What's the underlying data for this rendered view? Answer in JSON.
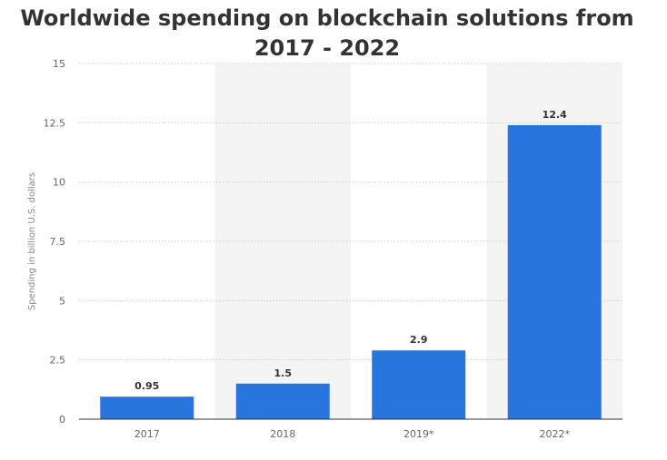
{
  "chart_data": {
    "type": "bar",
    "title": "Worldwide spending on blockchain solutions from 2017 - 2022",
    "xlabel": "",
    "ylabel": "Spending in billion U.S. dollars",
    "categories": [
      "2017",
      "2018",
      "2019*",
      "2022*"
    ],
    "values": [
      0.95,
      1.5,
      2.9,
      12.4
    ],
    "data_labels": [
      "0.95",
      "1.5",
      "2.9",
      "12.4"
    ],
    "ylim": [
      0,
      15
    ],
    "yticks": [
      0,
      2.5,
      5,
      7.5,
      10,
      12.5,
      15
    ],
    "ytick_labels": [
      "0",
      "2.5",
      "5",
      "7.5",
      "10",
      "12.5",
      "15"
    ],
    "grid": true,
    "colors": {
      "bar": "#2876dd",
      "band": "#f4f4f4",
      "grid": "#cccccc",
      "axis": "#333333",
      "title": "#333333"
    }
  }
}
